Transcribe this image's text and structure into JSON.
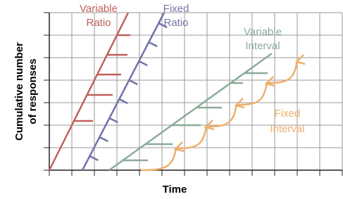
{
  "y_axis_title": [
    "Cumulative number",
    "of responses"
  ],
  "x_axis_title": "Time",
  "labels": {
    "variable_ratio": [
      "Variable",
      "Ratio"
    ],
    "fixed_ratio": [
      "Fixed",
      "Ratio"
    ],
    "variable_interval": [
      "Variable",
      "Interval"
    ],
    "fixed_interval": [
      "Fixed",
      "Interval"
    ]
  }
}
